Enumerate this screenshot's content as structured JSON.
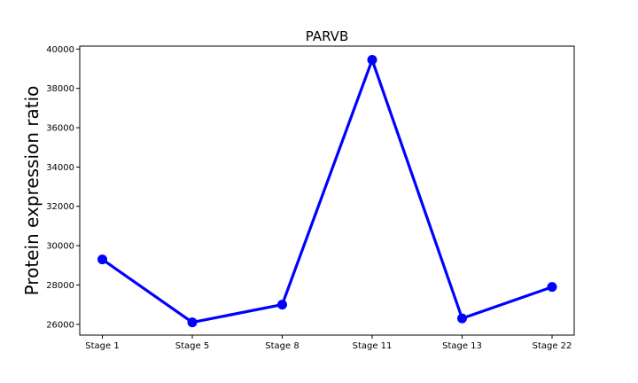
{
  "chart_data": {
    "type": "line",
    "title": "PARVB",
    "xlabel": "",
    "ylabel": "Protein expression ratio",
    "categories": [
      "Stage 1",
      "Stage 5",
      "Stage 8",
      "Stage 11",
      "Stage 13",
      "Stage 22"
    ],
    "series": [
      {
        "values": [
          29300,
          26100,
          27000,
          39450,
          26300,
          27900
        ],
        "color": "#0000ff"
      }
    ],
    "ylim": [
      25450,
      40150
    ],
    "yticks": [
      26000,
      28000,
      30000,
      32000,
      34000,
      36000,
      38000,
      40000
    ],
    "ytick_labels": [
      "26000",
      "28000",
      "30000",
      "32000",
      "34000",
      "36000",
      "38000",
      "40000"
    ],
    "grid": false,
    "legend": false
  }
}
